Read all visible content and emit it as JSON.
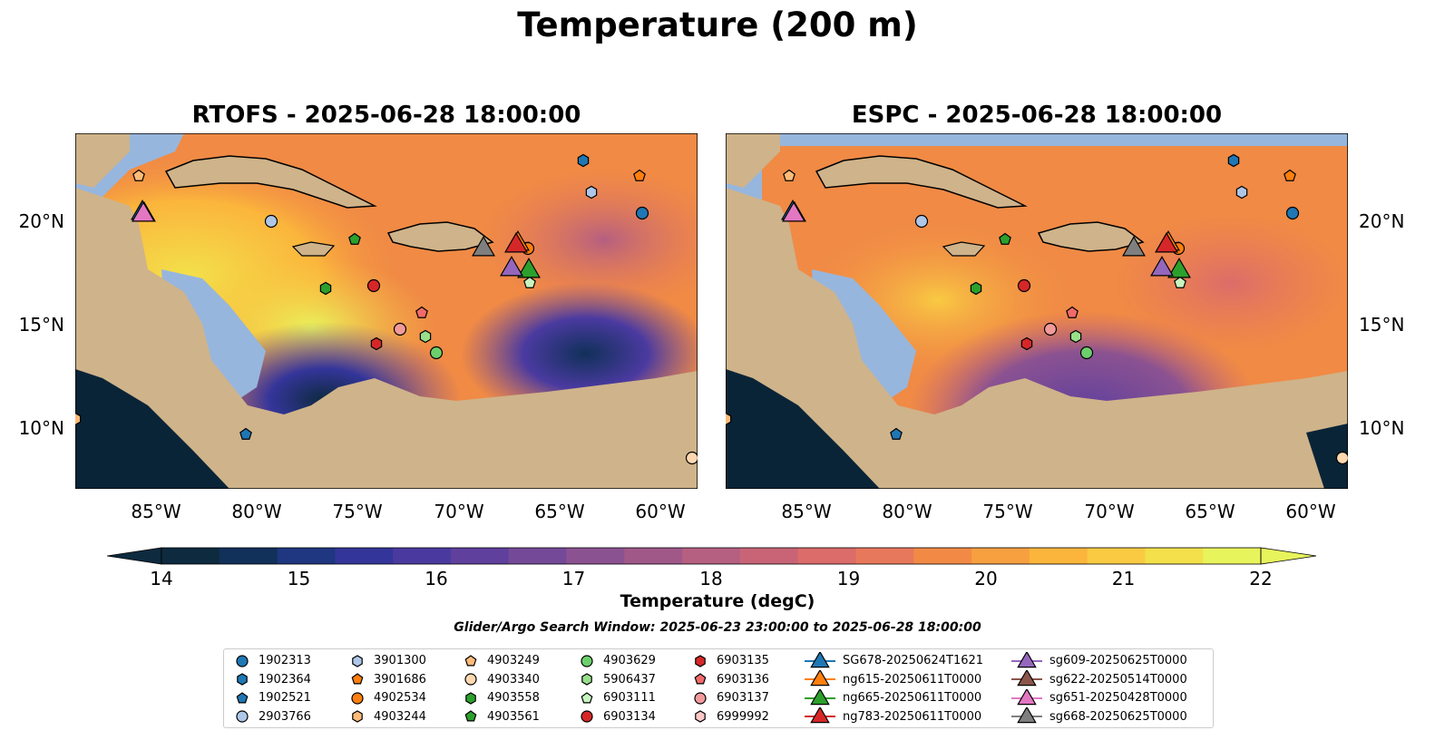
{
  "title": "Temperature (200 m)",
  "panels": [
    {
      "title": "RTOFS - 2025-06-28 18:00:00"
    },
    {
      "title": "ESPC - 2025-06-28 18:00:00"
    }
  ],
  "map": {
    "lon_labels": [
      "85°W",
      "80°W",
      "75°W",
      "70°W",
      "65°W",
      "60°W"
    ],
    "lat_labels": [
      "20°N",
      "15°N",
      "10°N"
    ],
    "colors": {
      "land": "#cfb38a",
      "shelf": "#97b6dd",
      "deep": "#0a2437",
      "ocean": "#f08a45"
    }
  },
  "colorbar": {
    "ticks": [
      "14",
      "15",
      "16",
      "17",
      "18",
      "19",
      "20",
      "21",
      "22"
    ],
    "label": "Temperature (degC)",
    "colors": [
      "#0d2a3f",
      "#11305a",
      "#1f3680",
      "#34359a",
      "#4a3aa0",
      "#5f409d",
      "#744a98",
      "#8b5291",
      "#a05889",
      "#b55f81",
      "#c96477",
      "#db6c6a",
      "#e8785c",
      "#f28a45",
      "#f7a040",
      "#fbb53c",
      "#f9ca42",
      "#f3e04a",
      "#e8f45c"
    ]
  },
  "search_window": "Glider/Argo Search Window: 2025-06-23 23:00:00 to 2025-06-28 18:00:00",
  "legend": {
    "columns": [
      [
        {
          "label": "1902313",
          "marker": "circle",
          "color": "#1f77b4"
        },
        {
          "label": "1902364",
          "marker": "hexagon",
          "color": "#1f77b4"
        },
        {
          "label": "1902521",
          "marker": "pentagon",
          "color": "#1f77b4"
        },
        {
          "label": "2903766",
          "marker": "circle",
          "color": "#aec7e8"
        }
      ],
      [
        {
          "label": "3901300",
          "marker": "hexagon",
          "color": "#aec7e8"
        },
        {
          "label": "3901686",
          "marker": "pentagon",
          "color": "#ff7f0e"
        },
        {
          "label": "4902534",
          "marker": "circle",
          "color": "#ff7f0e"
        },
        {
          "label": "4903244",
          "marker": "hexagon",
          "color": "#ffbb78"
        }
      ],
      [
        {
          "label": "4903249",
          "marker": "pentagon",
          "color": "#ffbb78"
        },
        {
          "label": "4903340",
          "marker": "circle",
          "color": "#ffd8b0"
        },
        {
          "label": "4903558",
          "marker": "hexagon",
          "color": "#2ca02c"
        },
        {
          "label": "4903561",
          "marker": "pentagon",
          "color": "#2ca02c"
        }
      ],
      [
        {
          "label": "4903629",
          "marker": "circle",
          "color": "#6ccf6c"
        },
        {
          "label": "5906437",
          "marker": "hexagon",
          "color": "#98df8a"
        },
        {
          "label": "6903111",
          "marker": "pentagon",
          "color": "#c7f5c0"
        },
        {
          "label": "6903134",
          "marker": "circle",
          "color": "#d62728"
        }
      ],
      [
        {
          "label": "6903135",
          "marker": "hexagon",
          "color": "#d62728"
        },
        {
          "label": "6903136",
          "marker": "pentagon",
          "color": "#f06a6a"
        },
        {
          "label": "6903137",
          "marker": "circle",
          "color": "#f29a9a"
        },
        {
          "label": "6999992",
          "marker": "hexagon",
          "color": "#ffc8c8"
        }
      ],
      [
        {
          "label": "SG678-20250624T1621",
          "marker": "triangle",
          "color": "#1f77b4"
        },
        {
          "label": "ng615-20250611T0000",
          "marker": "triangle",
          "color": "#ff7f0e"
        },
        {
          "label": "ng665-20250611T0000",
          "marker": "triangle",
          "color": "#2ca02c"
        },
        {
          "label": "ng783-20250611T0000",
          "marker": "triangle",
          "color": "#d62728"
        }
      ],
      [
        {
          "label": "sg609-20250625T0000",
          "marker": "triangle",
          "color": "#9467bd"
        },
        {
          "label": "sg622-20250514T0000",
          "marker": "triangle",
          "color": "#8c564b"
        },
        {
          "label": "sg651-20250428T0000",
          "marker": "triangle",
          "color": "#e377c2"
        },
        {
          "label": "sg668-20250625T0000",
          "marker": "triangle",
          "color": "#7f7f7f"
        }
      ]
    ]
  }
}
